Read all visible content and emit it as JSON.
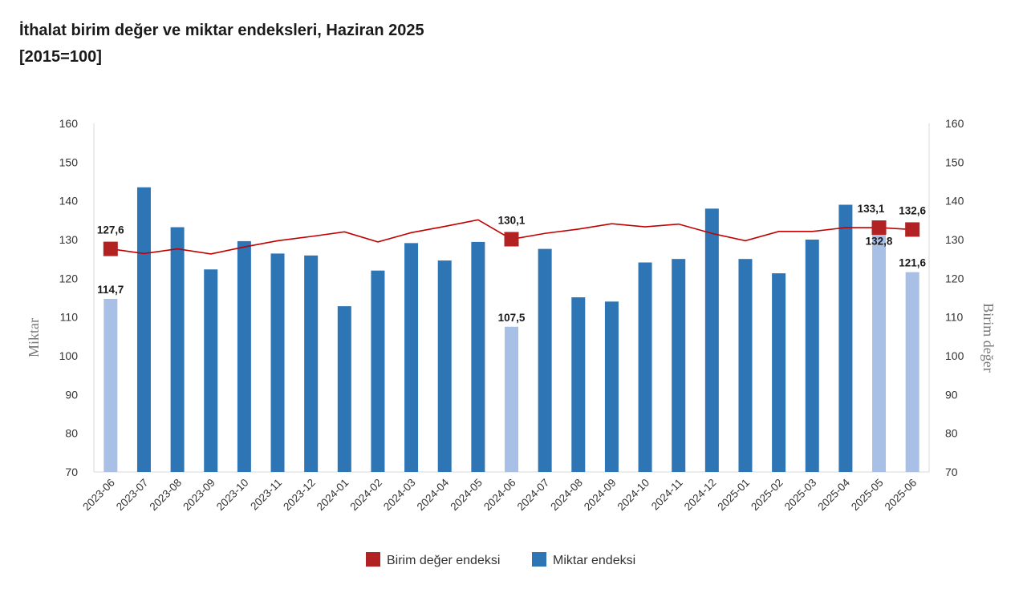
{
  "title": "İthalat birim değer ve miktar endeksleri, Haziran 2025",
  "subtitle": "[2015=100]",
  "chart_data": {
    "type": "bar",
    "categories": [
      "2023-06",
      "2023-07",
      "2023-08",
      "2023-09",
      "2023-10",
      "2023-11",
      "2023-12",
      "2024-01",
      "2024-02",
      "2024-03",
      "2024-04",
      "2024-05",
      "2024-06",
      "2024-07",
      "2024-08",
      "2024-09",
      "2024-10",
      "2024-11",
      "2024-12",
      "2025-01",
      "2025-02",
      "2025-03",
      "2025-04",
      "2025-05",
      "2025-06"
    ],
    "ylabel_left": "Miktar",
    "ylabel_right": "Birim değer",
    "ylim": [
      70,
      160
    ],
    "yticks": [
      70,
      80,
      90,
      100,
      110,
      120,
      130,
      140,
      150,
      160
    ],
    "grid": false,
    "legend_position": "bottom",
    "series": [
      {
        "name": "Birim değer endeksi",
        "type": "line",
        "axis": "right",
        "color": "#c00000",
        "marker_color": "#b22222",
        "values": [
          127.6,
          126.4,
          127.6,
          126.3,
          128.1,
          129.7,
          130.8,
          132.0,
          129.4,
          131.8,
          133.4,
          135.1,
          130.1,
          131.6,
          132.7,
          134.1,
          133.3,
          134.0,
          131.6,
          129.7,
          132.1,
          132.1,
          133.1,
          133.1,
          132.6
        ],
        "markers_at": [
          0,
          12,
          23,
          24
        ]
      },
      {
        "name": "Miktar endeksi",
        "type": "bar",
        "axis": "left",
        "color": "#2e75b6",
        "highlight_color": "#a9c0e6",
        "values": [
          114.7,
          143.5,
          133.2,
          122.3,
          129.6,
          126.4,
          125.9,
          112.8,
          122.0,
          129.1,
          124.6,
          129.4,
          107.5,
          127.6,
          115.1,
          114.0,
          124.1,
          125.0,
          138.0,
          125.0,
          121.3,
          130.0,
          139.0,
          132.8,
          121.6
        ],
        "highlight_at": [
          0,
          12,
          23,
          24
        ]
      }
    ],
    "data_labels": [
      {
        "series": "Birim değer endeksi",
        "category": "2023-06",
        "text": "127,6"
      },
      {
        "series": "Miktar endeksi",
        "category": "2023-06",
        "text": "114,7"
      },
      {
        "series": "Birim değer endeksi",
        "category": "2024-06",
        "text": "130,1"
      },
      {
        "series": "Miktar endeksi",
        "category": "2024-06",
        "text": "107,5"
      },
      {
        "series": "Birim değer endeksi",
        "category": "2025-05",
        "text": "133,1"
      },
      {
        "series": "Miktar endeksi",
        "category": "2025-05",
        "text": "132,8"
      },
      {
        "series": "Birim değer endeksi",
        "category": "2025-06",
        "text": "132,6"
      },
      {
        "series": "Miktar endeksi",
        "category": "2025-06",
        "text": "121,6"
      }
    ]
  }
}
